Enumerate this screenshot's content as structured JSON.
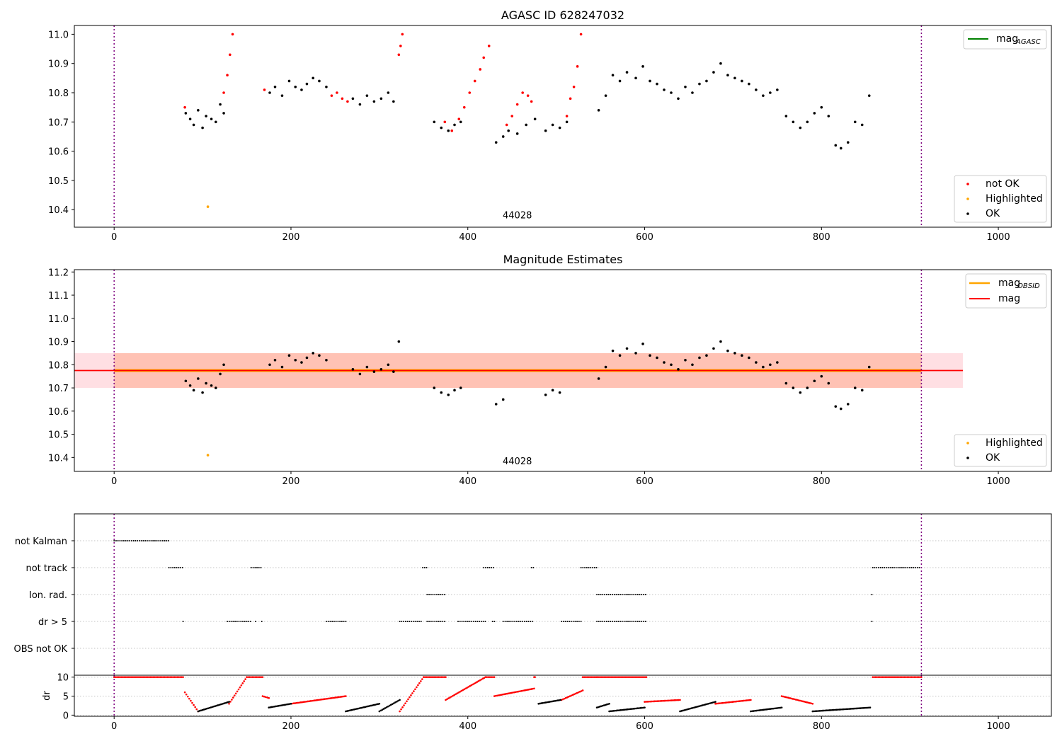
{
  "chart_data": [
    {
      "type": "scatter",
      "title": "AGASC ID 628247032",
      "xlim": [
        -45,
        1060
      ],
      "ylim": [
        10.34,
        11.03
      ],
      "xticks": [
        0,
        200,
        400,
        600,
        800,
        1000
      ],
      "yticks": [
        10.4,
        10.5,
        10.6,
        10.7,
        10.8,
        10.9,
        11.0
      ],
      "vlines": [
        0,
        913
      ],
      "annotation": {
        "text": "44028",
        "x": 456,
        "y": 10.37
      },
      "legend_lines": [
        {
          "label": "mag",
          "sub": "AGASC",
          "color": "#008000"
        }
      ],
      "legend_points": [
        {
          "label": "not OK",
          "color": "#ff0000"
        },
        {
          "label": "Highlighted",
          "color": "#ffa500"
        },
        {
          "label": "OK",
          "color": "#000000"
        }
      ],
      "series": [
        {
          "name": "OK",
          "color": "#000000",
          "x": [
            81,
            86,
            90,
            95,
            100,
            104,
            110,
            115,
            120,
            124,
            176,
            182,
            190,
            198,
            205,
            212,
            218,
            225,
            232,
            240,
            270,
            278,
            286,
            294,
            302,
            310,
            316,
            362,
            370,
            378,
            385,
            392,
            432,
            440,
            446,
            456,
            466,
            476,
            488,
            496,
            504,
            512,
            548,
            556,
            564,
            572,
            580,
            590,
            598,
            606,
            614,
            622,
            630,
            638,
            646,
            654,
            662,
            670,
            678,
            686,
            694,
            702,
            710,
            718,
            726,
            734,
            742,
            750,
            760,
            768,
            776,
            784,
            792,
            800,
            808,
            816,
            822,
            830,
            838,
            846,
            854
          ],
          "y": [
            10.73,
            10.71,
            10.69,
            10.74,
            10.68,
            10.72,
            10.71,
            10.7,
            10.76,
            10.73,
            10.8,
            10.82,
            10.79,
            10.84,
            10.82,
            10.81,
            10.83,
            10.85,
            10.84,
            10.82,
            10.78,
            10.76,
            10.79,
            10.77,
            10.78,
            10.8,
            10.77,
            10.7,
            10.68,
            10.67,
            10.69,
            10.7,
            10.63,
            10.65,
            10.67,
            10.66,
            10.69,
            10.71,
            10.67,
            10.69,
            10.68,
            10.7,
            10.74,
            10.79,
            10.86,
            10.84,
            10.87,
            10.85,
            10.89,
            10.84,
            10.83,
            10.81,
            10.8,
            10.78,
            10.82,
            10.8,
            10.83,
            10.84,
            10.87,
            10.9,
            10.86,
            10.85,
            10.84,
            10.83,
            10.81,
            10.79,
            10.8,
            10.81,
            10.72,
            10.7,
            10.68,
            10.7,
            10.73,
            10.75,
            10.72,
            10.62,
            10.61,
            10.63,
            10.7,
            10.69,
            10.79
          ]
        },
        {
          "name": "not OK",
          "color": "#ff0000",
          "x": [
            80,
            124,
            128,
            131,
            134,
            170,
            246,
            252,
            258,
            264,
            322,
            324,
            326,
            374,
            382,
            390,
            396,
            402,
            408,
            414,
            418,
            424,
            444,
            450,
            456,
            462,
            468,
            472,
            512,
            516,
            520,
            524,
            528
          ],
          "y": [
            10.75,
            10.8,
            10.86,
            10.93,
            11.0,
            10.81,
            10.79,
            10.8,
            10.78,
            10.77,
            10.93,
            10.96,
            11.0,
            10.7,
            10.67,
            10.71,
            10.75,
            10.8,
            10.84,
            10.88,
            10.92,
            10.96,
            10.69,
            10.72,
            10.76,
            10.8,
            10.79,
            10.77,
            10.72,
            10.78,
            10.82,
            10.89,
            11.0
          ]
        },
        {
          "name": "Highlighted",
          "color": "#ffa500",
          "x": [
            106
          ],
          "y": [
            10.41
          ]
        }
      ]
    },
    {
      "type": "scatter",
      "title": "Magnitude Estimates",
      "xlim": [
        -45,
        1060
      ],
      "ylim": [
        10.34,
        11.21
      ],
      "xticks": [
        0,
        200,
        400,
        600,
        800,
        1000
      ],
      "yticks": [
        10.4,
        10.5,
        10.6,
        10.7,
        10.8,
        10.9,
        11.0,
        11.1,
        11.2
      ],
      "vlines": [
        0,
        913
      ],
      "annotation": {
        "text": "44028",
        "x": 456,
        "y": 10.37
      },
      "mag_band": {
        "low": 10.7,
        "high": 10.85,
        "x_end": 960
      },
      "mag_value": 10.775,
      "legend_lines": [
        {
          "label": "mag",
          "sub": "OBSID",
          "color": "#ffa500"
        },
        {
          "label": "mag",
          "sub": "",
          "color": "#ff0000"
        }
      ],
      "legend_points": [
        {
          "label": "Highlighted",
          "color": "#ffa500"
        },
        {
          "label": "OK",
          "color": "#000000"
        }
      ],
      "series": [
        {
          "name": "OK",
          "color": "#000000",
          "x": [
            81,
            86,
            90,
            95,
            100,
            104,
            110,
            115,
            120,
            124,
            176,
            182,
            190,
            198,
            205,
            212,
            218,
            225,
            232,
            240,
            270,
            278,
            286,
            294,
            302,
            310,
            316,
            322,
            362,
            370,
            378,
            385,
            392,
            432,
            440,
            488,
            496,
            504,
            548,
            556,
            564,
            572,
            580,
            590,
            598,
            606,
            614,
            622,
            630,
            638,
            646,
            654,
            662,
            670,
            678,
            686,
            694,
            702,
            710,
            718,
            726,
            734,
            742,
            750,
            760,
            768,
            776,
            784,
            792,
            800,
            808,
            816,
            822,
            830,
            838,
            846,
            854
          ],
          "y": [
            10.73,
            10.71,
            10.69,
            10.74,
            10.68,
            10.72,
            10.71,
            10.7,
            10.76,
            10.8,
            10.8,
            10.82,
            10.79,
            10.84,
            10.82,
            10.81,
            10.83,
            10.85,
            10.84,
            10.82,
            10.78,
            10.76,
            10.79,
            10.77,
            10.78,
            10.8,
            10.77,
            10.9,
            10.7,
            10.68,
            10.67,
            10.69,
            10.7,
            10.63,
            10.65,
            10.67,
            10.69,
            10.68,
            10.74,
            10.79,
            10.86,
            10.84,
            10.87,
            10.85,
            10.89,
            10.84,
            10.83,
            10.81,
            10.8,
            10.78,
            10.82,
            10.8,
            10.83,
            10.84,
            10.87,
            10.9,
            10.86,
            10.85,
            10.84,
            10.83,
            10.81,
            10.79,
            10.8,
            10.81,
            10.72,
            10.7,
            10.68,
            10.7,
            10.73,
            10.75,
            10.72,
            10.62,
            10.61,
            10.63,
            10.7,
            10.69,
            10.79
          ]
        },
        {
          "name": "Highlighted",
          "color": "#ffa500",
          "x": [
            106
          ],
          "y": [
            10.41
          ]
        }
      ]
    },
    {
      "type": "scatter",
      "title": "",
      "xlim": [
        -45,
        1060
      ],
      "vlines": [
        0,
        913
      ],
      "categories": [
        "not Kalman",
        "not track",
        "Ion. rad.",
        "dr > 5",
        "OBS not OK"
      ],
      "flag_segments": [
        {
          "row": "not Kalman",
          "ranges": [
            [
              0,
              62
            ]
          ]
        },
        {
          "row": "not track",
          "ranges": [
            [
              62,
              78
            ],
            [
              155,
              168
            ],
            [
              349,
              354
            ],
            [
              418,
              430
            ],
            [
              472,
              476
            ],
            [
              528,
              546
            ],
            [
              858,
              913
            ]
          ]
        },
        {
          "row": "Ion. rad.",
          "ranges": [
            [
              354,
              375
            ],
            [
              546,
              602
            ],
            [
              857,
              858
            ]
          ]
        },
        {
          "row": "dr > 5",
          "ranges": [
            [
              78,
              79
            ],
            [
              128,
              155
            ],
            [
              160,
              162
            ],
            [
              167,
              169
            ],
            [
              240,
              262
            ],
            [
              323,
              348
            ],
            [
              354,
              375
            ],
            [
              389,
              420
            ],
            [
              428,
              431
            ],
            [
              440,
              475
            ],
            [
              506,
              530
            ],
            [
              546,
              602
            ],
            [
              857,
              858
            ]
          ]
        }
      ]
    },
    {
      "type": "scatter",
      "title": "",
      "ylabel": "dr",
      "xlim": [
        -45,
        1060
      ],
      "ylim": [
        -0.3,
        10.5
      ],
      "xticks": [
        0,
        200,
        400,
        600,
        800,
        1000
      ],
      "yticks": [
        0,
        5,
        10
      ],
      "vlines": [
        0,
        913
      ],
      "red_segments": [
        [
          0,
          78,
          10,
          10
        ],
        [
          80,
          95,
          6,
          1
        ],
        [
          130,
          150,
          3,
          10
        ],
        [
          150,
          168,
          10,
          10
        ],
        [
          168,
          175,
          5,
          4.5
        ],
        [
          200,
          262,
          3,
          5
        ],
        [
          323,
          350,
          1,
          10
        ],
        [
          350,
          375,
          10,
          10
        ],
        [
          375,
          420,
          4,
          10
        ],
        [
          420,
          430,
          10,
          10
        ],
        [
          430,
          475,
          5,
          7
        ],
        [
          475,
          476,
          10,
          10
        ],
        [
          506,
          530,
          4,
          6.5
        ],
        [
          530,
          546,
          10,
          10
        ],
        [
          546,
          602,
          10,
          10
        ],
        [
          600,
          640,
          3.5,
          4
        ],
        [
          680,
          720,
          3,
          4
        ],
        [
          755,
          790,
          5,
          3
        ],
        [
          858,
          913,
          10,
          10
        ]
      ],
      "black_segments": [
        [
          95,
          130,
          1,
          3.5
        ],
        [
          175,
          200,
          2,
          3
        ],
        [
          262,
          300,
          1,
          3
        ],
        [
          300,
          323,
          1,
          4
        ],
        [
          480,
          505,
          3,
          4
        ],
        [
          546,
          560,
          2,
          3
        ],
        [
          560,
          600,
          1,
          2
        ],
        [
          640,
          680,
          1,
          3.5
        ],
        [
          720,
          755,
          1,
          2
        ],
        [
          790,
          855,
          1,
          2
        ]
      ]
    }
  ]
}
